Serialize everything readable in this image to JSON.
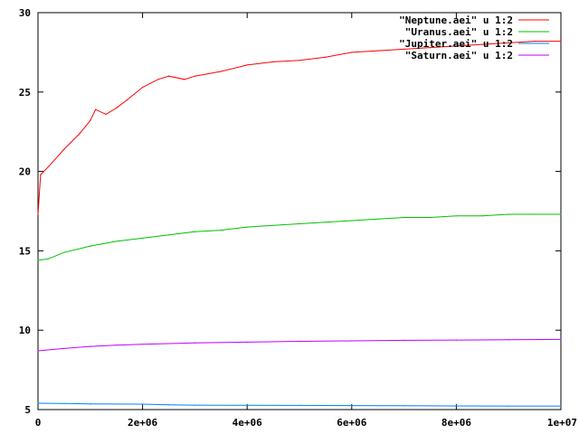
{
  "chart_data": {
    "type": "line",
    "title": "",
    "xlabel": "",
    "ylabel": "",
    "xlim": [
      0,
      10000000
    ],
    "ylim": [
      5,
      30
    ],
    "grid": false,
    "legend_position": "top-right",
    "x_ticks": [
      {
        "value": 0,
        "label": "0"
      },
      {
        "value": 2000000,
        "label": "2e+06"
      },
      {
        "value": 4000000,
        "label": "4e+06"
      },
      {
        "value": 6000000,
        "label": "6e+06"
      },
      {
        "value": 8000000,
        "label": "8e+06"
      },
      {
        "value": 10000000,
        "label": "1e+07"
      }
    ],
    "y_ticks": [
      {
        "value": 5,
        "label": "5"
      },
      {
        "value": 10,
        "label": "10"
      },
      {
        "value": 15,
        "label": "15"
      },
      {
        "value": 20,
        "label": "20"
      },
      {
        "value": 25,
        "label": "25"
      },
      {
        "value": 30,
        "label": "30"
      }
    ],
    "series": [
      {
        "name": "\"Neptune.aei\" u 1:2",
        "color": "#ff0000",
        "x": [
          0,
          50000,
          200000,
          500000,
          800000,
          1000000,
          1100000,
          1300000,
          1500000,
          1700000,
          2000000,
          2300000,
          2500000,
          2800000,
          3000000,
          3500000,
          4000000,
          4500000,
          5000000,
          5500000,
          6000000,
          6500000,
          7000000,
          7500000,
          8000000,
          8500000,
          9000000,
          9500000,
          10000000
        ],
        "y": [
          17.3,
          19.8,
          20.3,
          21.4,
          22.4,
          23.2,
          23.9,
          23.6,
          24.0,
          24.5,
          25.3,
          25.8,
          26.0,
          25.8,
          26.0,
          26.3,
          26.7,
          26.9,
          27.0,
          27.2,
          27.5,
          27.6,
          27.7,
          27.8,
          27.9,
          28.0,
          28.1,
          28.2,
          28.2
        ]
      },
      {
        "name": "\"Uranus.aei\" u 1:2",
        "color": "#00c000",
        "x": [
          0,
          200000,
          500000,
          1000000,
          1500000,
          2000000,
          2500000,
          3000000,
          3500000,
          4000000,
          4500000,
          5000000,
          5500000,
          6000000,
          6500000,
          7000000,
          7500000,
          8000000,
          8500000,
          9000000,
          9500000,
          10000000
        ],
        "y": [
          14.4,
          14.5,
          14.9,
          15.3,
          15.6,
          15.8,
          16.0,
          16.2,
          16.3,
          16.5,
          16.6,
          16.7,
          16.8,
          16.9,
          17.0,
          17.1,
          17.1,
          17.2,
          17.2,
          17.3,
          17.3,
          17.3
        ]
      },
      {
        "name": "\"Jupiter.aei\" u 1:2",
        "color": "#0080ff",
        "x": [
          0,
          500000,
          1000000,
          2000000,
          2500000,
          3000000,
          4000000,
          5000000,
          6000000,
          7000000,
          8000000,
          9000000,
          10000000
        ],
        "y": [
          5.4,
          5.38,
          5.36,
          5.34,
          5.3,
          5.28,
          5.27,
          5.26,
          5.25,
          5.24,
          5.23,
          5.22,
          5.22
        ]
      },
      {
        "name": "\"Saturn.aei\" u 1:2",
        "color": "#c000ff",
        "x": [
          0,
          500000,
          1000000,
          1500000,
          2000000,
          3000000,
          4000000,
          5000000,
          6000000,
          7000000,
          8000000,
          9000000,
          10000000
        ],
        "y": [
          8.7,
          8.85,
          8.98,
          9.06,
          9.12,
          9.2,
          9.25,
          9.3,
          9.33,
          9.36,
          9.38,
          9.4,
          9.42
        ]
      }
    ]
  }
}
